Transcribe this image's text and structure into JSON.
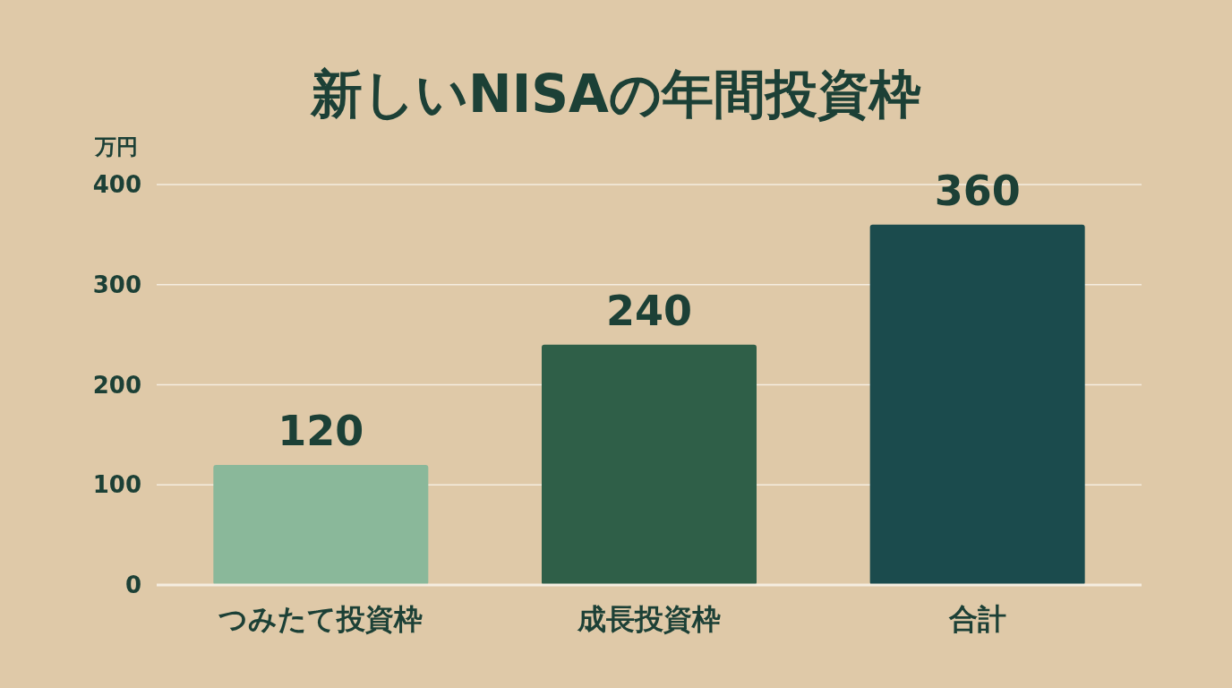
{
  "chart_data": {
    "type": "bar",
    "title": "新しいNISAの年間投資枠",
    "ylabel": "万円",
    "categories": [
      "つみたて投資枠",
      "成長投資枠",
      "合計"
    ],
    "values": [
      120,
      240,
      360
    ],
    "colors": [
      "#8ab89a",
      "#2f5f48",
      "#1b4b4d"
    ],
    "ylim": [
      0,
      400
    ],
    "yticks": [
      0,
      100,
      200,
      300,
      400
    ],
    "grid": "y",
    "data_labels": true
  }
}
